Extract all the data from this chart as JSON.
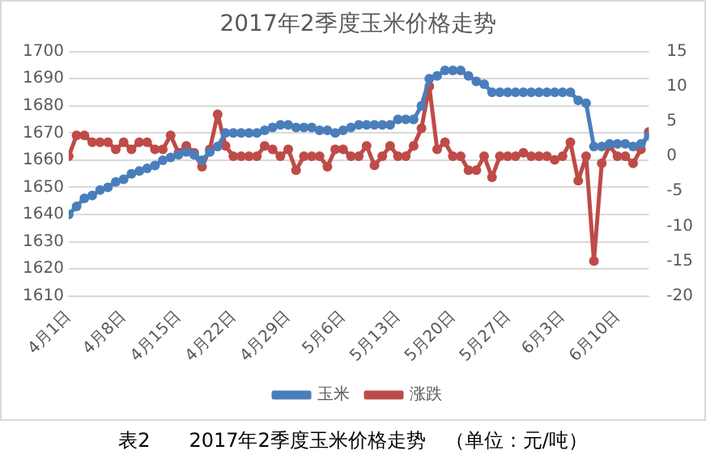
{
  "chart_data": {
    "type": "line",
    "title": "2017年2季度玉米价格走势",
    "x": [
      "2017-04-01",
      "2017-04-02",
      "2017-04-03",
      "2017-04-04",
      "2017-04-05",
      "2017-04-06",
      "2017-04-07",
      "2017-04-08",
      "2017-04-09",
      "2017-04-10",
      "2017-04-11",
      "2017-04-12",
      "2017-04-13",
      "2017-04-14",
      "2017-04-15",
      "2017-04-16",
      "2017-04-17",
      "2017-04-18",
      "2017-04-19",
      "2017-04-20",
      "2017-04-21",
      "2017-04-22",
      "2017-04-23",
      "2017-04-24",
      "2017-04-25",
      "2017-04-26",
      "2017-04-27",
      "2017-04-28",
      "2017-04-29",
      "2017-04-30",
      "2017-05-01",
      "2017-05-02",
      "2017-05-03",
      "2017-05-04",
      "2017-05-05",
      "2017-05-06",
      "2017-05-07",
      "2017-05-08",
      "2017-05-09",
      "2017-05-10",
      "2017-05-11",
      "2017-05-12",
      "2017-05-13",
      "2017-05-14",
      "2017-05-15",
      "2017-05-16",
      "2017-05-17",
      "2017-05-18",
      "2017-05-19",
      "2017-05-20",
      "2017-05-21",
      "2017-05-22",
      "2017-05-23",
      "2017-05-24",
      "2017-05-25",
      "2017-05-26",
      "2017-05-27",
      "2017-05-28",
      "2017-05-29",
      "2017-05-30",
      "2017-05-31",
      "2017-06-01",
      "2017-06-02",
      "2017-06-03",
      "2017-06-04",
      "2017-06-05",
      "2017-06-06",
      "2017-06-07",
      "2017-06-08",
      "2017-06-09",
      "2017-06-10",
      "2017-06-11",
      "2017-06-12",
      "2017-06-13",
      "2017-06-14"
    ],
    "series": [
      {
        "name": "玉米",
        "color": "#4a7ebb",
        "values": [
          1640,
          1643,
          1646,
          1647,
          1649,
          1650,
          1652,
          1653,
          1655,
          1656,
          1657,
          1658,
          1660,
          1661,
          1662,
          1663,
          1662,
          1660,
          1663,
          1665,
          1670,
          1670,
          1670,
          1670,
          1670,
          1671,
          1672,
          1673,
          1673,
          1672,
          1672,
          1672,
          1671,
          1671,
          1670,
          1671,
          1672,
          1673,
          1673,
          1673,
          1673,
          1673,
          1675,
          1675,
          1675,
          1680,
          1690,
          1691,
          1693,
          1693,
          1693,
          1691,
          1689,
          1688,
          1685,
          1685,
          1685,
          1685,
          1685,
          1685,
          1685,
          1685,
          1685,
          1685,
          1685,
          1682,
          1681,
          1665,
          1665,
          1666,
          1666,
          1666,
          1665,
          1666,
          1669
        ]
      },
      {
        "name": "涨跌",
        "color": "#be4b48",
        "axis": "y2",
        "values": [
          0,
          3,
          3,
          2,
          2,
          2,
          1,
          2,
          1,
          2,
          2,
          1,
          1,
          3,
          0.5,
          1.5,
          0.5,
          -1.5,
          1,
          6,
          1.5,
          0,
          0,
          0,
          0,
          1.5,
          1,
          0,
          1,
          -2,
          0,
          0,
          0,
          -1.5,
          1,
          1,
          0,
          0,
          1.5,
          -1.3,
          0,
          1.5,
          0,
          0,
          1.5,
          4,
          10,
          1,
          2,
          0,
          0,
          -2,
          -2,
          0,
          -3,
          0,
          0,
          0,
          0.5,
          0,
          0,
          0,
          -0.5,
          0,
          2,
          -3.5,
          0,
          -15,
          -1,
          1.5,
          0,
          0,
          -1,
          1,
          3.5
        ]
      }
    ],
    "xlim": [
      "2017-04-01",
      "2017-06-14"
    ],
    "xticks": [
      {
        "value": "2017-04-01",
        "label": "4月1日"
      },
      {
        "value": "2017-04-08",
        "label": "4月8日"
      },
      {
        "value": "2017-04-15",
        "label": "4月15日"
      },
      {
        "value": "2017-04-22",
        "label": "4月22日"
      },
      {
        "value": "2017-04-29",
        "label": "4月29日"
      },
      {
        "value": "2017-05-06",
        "label": "5月6日"
      },
      {
        "value": "2017-05-13",
        "label": "5月13日"
      },
      {
        "value": "2017-05-20",
        "label": "5月20日"
      },
      {
        "value": "2017-05-27",
        "label": "5月27日"
      },
      {
        "value": "2017-06-03",
        "label": "6月3日"
      },
      {
        "value": "2017-06-10",
        "label": "6月10日"
      }
    ],
    "ylim": [
      1610,
      1700
    ],
    "yticks": [
      1610,
      1620,
      1630,
      1640,
      1650,
      1660,
      1670,
      1680,
      1690,
      1700
    ],
    "y2lim": [
      -20,
      15
    ],
    "y2ticks": [
      -20,
      -15,
      -10,
      -5,
      0,
      5,
      10,
      15
    ],
    "grid": "y",
    "legend": "bottom",
    "marker": "circle",
    "line_style": "solid",
    "annotations": [
      "表2　　2017年2季度玉米价格走势　（单位：元/吨）"
    ]
  }
}
